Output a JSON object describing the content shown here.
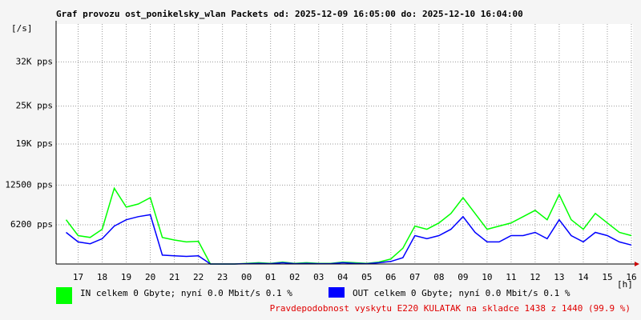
{
  "chart_data": {
    "type": "line",
    "title": "Graf provozu ost_ponikelsky_wlan Packets od: 2025-12-09 16:05:00 do: 2025-12-10 16:04:00",
    "y_label": "[/s]",
    "x_label": "[h]",
    "x": [
      16.5,
      17,
      17.5,
      18,
      18.5,
      19,
      19.5,
      20,
      20.5,
      21,
      21.5,
      22,
      22.5,
      23,
      23.5,
      24,
      24.5,
      25,
      25.5,
      26,
      26.5,
      27,
      27.5,
      28,
      28.5,
      29,
      29.5,
      30,
      30.5,
      31,
      31.5,
      32,
      32.5,
      33,
      33.5,
      34,
      34.5,
      35,
      35.5,
      36,
      36.5,
      37,
      37.5,
      38,
      38.5,
      39,
      39.5,
      40
    ],
    "series": [
      {
        "name": "IN celkem 0 Gbyte; nyní   0.0 Mbit/s 0.1 %",
        "color": "#00ff00",
        "values": [
          7000,
          4500,
          4200,
          5500,
          12000,
          9000,
          9500,
          10500,
          4200,
          3800,
          3500,
          3600,
          0,
          0,
          0,
          100,
          200,
          100,
          300,
          100,
          200,
          100,
          100,
          300,
          200,
          100,
          300,
          800,
          2500,
          6000,
          5500,
          6500,
          8000,
          10500,
          8000,
          5500,
          6000,
          6500,
          7500,
          8500,
          7000,
          11000,
          7000,
          5500,
          8000,
          6500,
          5000,
          4500
        ]
      },
      {
        "name": "OUT celkem 0 Gbyte; nyní   0.0 Mbit/s 0.1 %",
        "color": "#0000ff",
        "values": [
          5000,
          3500,
          3200,
          4000,
          6000,
          7000,
          7500,
          7800,
          1400,
          1300,
          1200,
          1300,
          0,
          0,
          0,
          50,
          100,
          50,
          200,
          50,
          100,
          50,
          50,
          200,
          100,
          50,
          200,
          400,
          1000,
          4500,
          4000,
          4500,
          5500,
          7500,
          5000,
          3500,
          3500,
          4500,
          4500,
          5000,
          4000,
          7000,
          4500,
          3500,
          5000,
          4500,
          3500,
          3000
        ]
      }
    ],
    "xlim": [
      16.0833,
      40.0667
    ],
    "xticks": [
      17,
      18,
      19,
      20,
      21,
      22,
      23,
      {
        "value": 24,
        "label": "00"
      },
      {
        "value": 25,
        "label": "01"
      },
      {
        "value": 26,
        "label": "02"
      },
      {
        "value": 27,
        "label": "03"
      },
      {
        "value": 28,
        "label": "04"
      },
      {
        "value": 29,
        "label": "05"
      },
      {
        "value": 30,
        "label": "06"
      },
      {
        "value": 31,
        "label": "07"
      },
      {
        "value": 32,
        "label": "08"
      },
      {
        "value": 33,
        "label": "09"
      },
      {
        "value": 34,
        "label": "10"
      },
      {
        "value": 35,
        "label": "11"
      },
      {
        "value": 36,
        "label": "12"
      },
      {
        "value": 37,
        "label": "13"
      },
      {
        "value": 38,
        "label": "14"
      },
      {
        "value": 39,
        "label": "15"
      },
      {
        "value": 40,
        "label": "16"
      }
    ],
    "ylim": [
      0,
      38000
    ],
    "yticks": [
      {
        "value": 6200,
        "label": "6200 pps"
      },
      {
        "value": 12500,
        "label": "12500 pps"
      },
      {
        "value": 19000,
        "label": "19K pps"
      },
      {
        "value": 25000,
        "label": "25K pps"
      },
      {
        "value": 32000,
        "label": "32K pps"
      }
    ],
    "grid": true,
    "footer": "Pravdepodobnost vyskytu E220 KULATAK na skladce 1438 z 1440 (99.9 %)"
  }
}
